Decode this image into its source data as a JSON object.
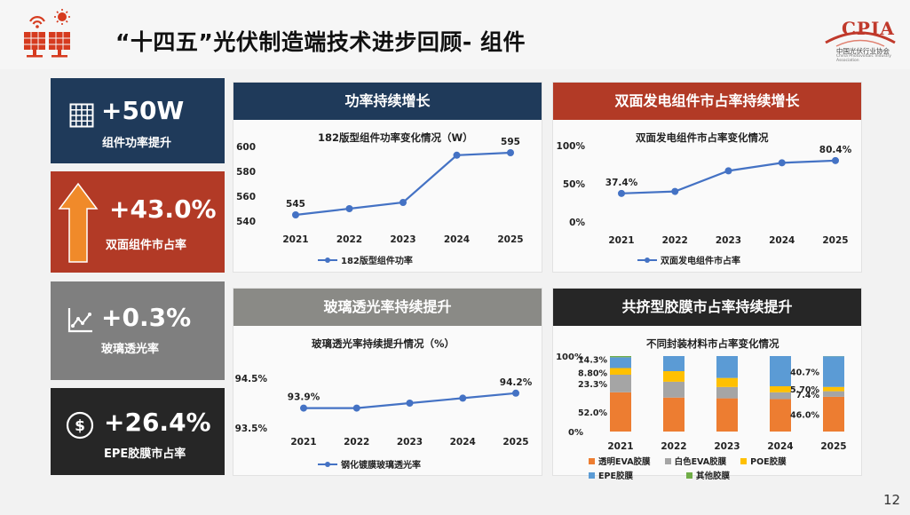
{
  "header": {
    "title": "“十四五”光伏制造端技术进步回顾- 组件",
    "logo_text": "CPIA",
    "logo_subtitle": "中国光伏行业协会",
    "logo_subtitle_en": "China Photovoltaic Industry Association"
  },
  "kpis": [
    {
      "value": "+50W",
      "label": "组件功率提升",
      "icon": "grid-panel-icon"
    },
    {
      "value": "+43.0%",
      "label": "双面组件市占率",
      "icon": "up-arrow-icon"
    },
    {
      "value": "+0.3%",
      "label": "玻璃透光率",
      "icon": "trend-chart-icon"
    },
    {
      "value": "+26.4%",
      "label": "EPE胶膜市占率",
      "icon": "dollar-icon"
    }
  ],
  "panels": {
    "power": {
      "header": "功率持续增长"
    },
    "bifacial": {
      "header": "双面发电组件市占率持续增长"
    },
    "glass": {
      "header": "玻璃透光率持续提升"
    },
    "film": {
      "header": "共挤型胶膜市占率持续提升"
    }
  },
  "colors": {
    "navy": "#1f3a5a",
    "red": "#b23a26",
    "gray": "#7f7f7f",
    "dark": "#262626",
    "line": "#4472c4",
    "eva_clear": "#ed7d31",
    "eva_white": "#a5a5a5",
    "poe": "#ffc000",
    "epe": "#5b9bd5",
    "other": "#70ad47"
  },
  "chart_data": [
    {
      "type": "line",
      "title": "182版型组件功率变化情况（W）",
      "x": [
        "2021",
        "2022",
        "2023",
        "2024",
        "2025"
      ],
      "series": [
        {
          "name": "182版型组件功率",
          "values": [
            545,
            550,
            555,
            593,
            595
          ]
        }
      ],
      "data_labels": {
        "2021": "545",
        "2025": "595"
      },
      "yticks": [
        "540",
        "560",
        "580",
        "600"
      ],
      "ylim": [
        540,
        600
      ]
    },
    {
      "type": "line",
      "title": "双面发电组件市占率变化情况",
      "x": [
        "2021",
        "2022",
        "2023",
        "2024",
        "2025"
      ],
      "series": [
        {
          "name": "双面发电组件市占率",
          "values": [
            37.4,
            40,
            67,
            77.5,
            80.4
          ]
        }
      ],
      "data_labels": {
        "2021": "37.4%",
        "2025": "80.4%"
      },
      "yticks": [
        "0%",
        "50%",
        "100%"
      ],
      "ylim": [
        0,
        100
      ]
    },
    {
      "type": "line",
      "title": "玻璃透光率持续提升情况（%）",
      "x": [
        "2021",
        "2022",
        "2023",
        "2024",
        "2025"
      ],
      "series": [
        {
          "name": "钢化镀膜玻璃透光率",
          "values": [
            93.9,
            93.9,
            94.0,
            94.1,
            94.2
          ]
        }
      ],
      "data_labels": {
        "2021": "93.9%",
        "2025": "94.2%"
      },
      "yticks": [
        "93.5%",
        "94.5%"
      ],
      "ylim": [
        93.5,
        94.5
      ]
    },
    {
      "type": "bar",
      "stacked": true,
      "title": "不同封装材料市占率变化情况",
      "categories": [
        "2021",
        "2022",
        "2023",
        "2024",
        "2025"
      ],
      "series": [
        {
          "name": "透明EVA胶膜",
          "values": [
            52.0,
            45.0,
            44.0,
            43.0,
            46.0
          ]
        },
        {
          "name": "白色EVA胶膜",
          "values": [
            23.3,
            21.0,
            15.0,
            9.0,
            7.4
          ]
        },
        {
          "name": "POE胶膜",
          "values": [
            8.8,
            14.0,
            12.0,
            8.0,
            5.7
          ]
        },
        {
          "name": "EPE胶膜",
          "values": [
            14.3,
            20.0,
            29.0,
            40.0,
            40.7
          ]
        },
        {
          "name": "其他胶膜",
          "values": [
            1.6,
            0,
            0,
            0,
            0.2
          ]
        }
      ],
      "data_labels": {
        "2021": [
          "52.0%",
          "23.3%",
          "8.80%",
          "14.3%"
        ],
        "2025": [
          "46.0%",
          "7.4%",
          "5.70%",
          "40.7%"
        ]
      },
      "yticks": [
        "0%",
        "100%"
      ],
      "ylim": [
        0,
        100
      ]
    }
  ],
  "page_number": "12"
}
